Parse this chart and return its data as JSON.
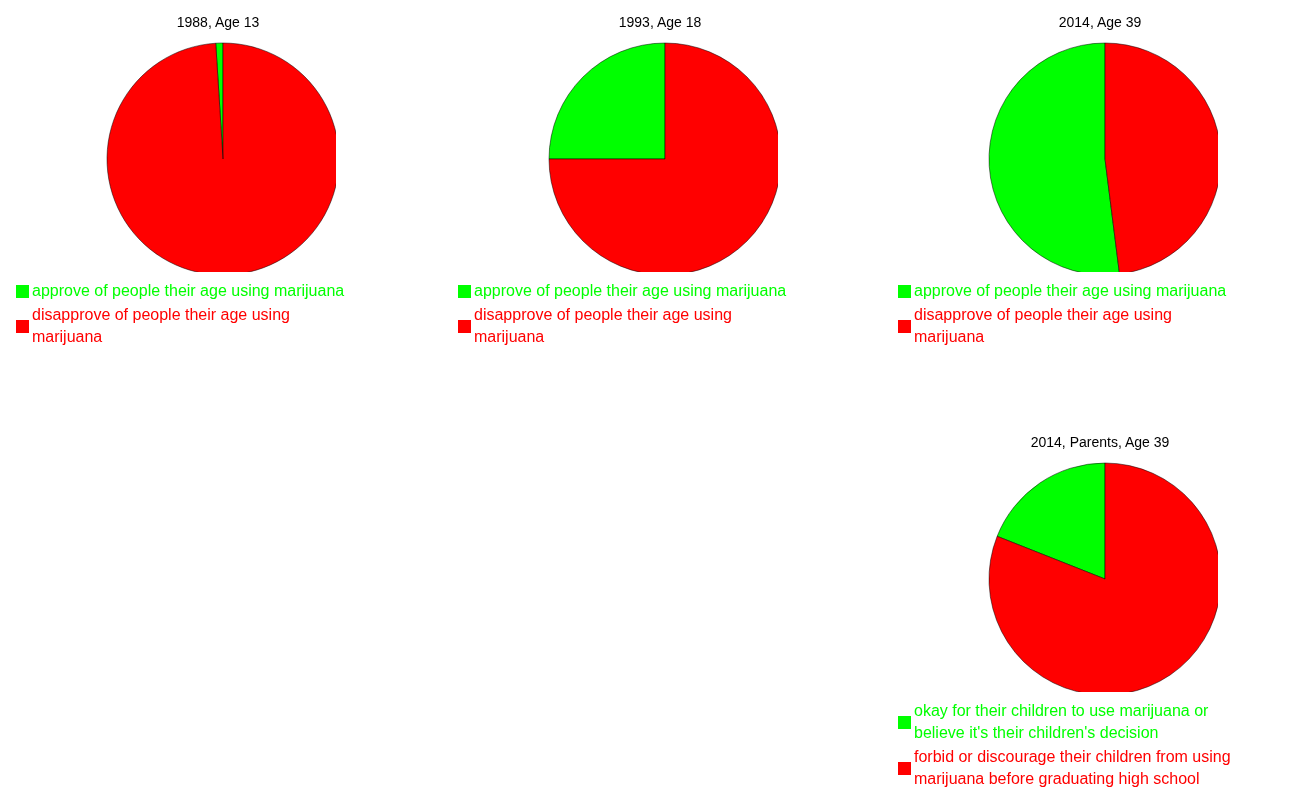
{
  "chart_data": [
    {
      "type": "pie",
      "title": "1988, Age 13",
      "categories": [
        "approve of people their age using marijuana",
        "disapprove of people their age using marijuana"
      ],
      "values": [
        1,
        99
      ],
      "colors": [
        "#00ff00",
        "#ff0000"
      ],
      "legend": "bottom"
    },
    {
      "type": "pie",
      "title": "1993, Age 18",
      "categories": [
        "approve of people their age using marijuana",
        "disapprove of people their age using marijuana"
      ],
      "values": [
        25,
        75
      ],
      "colors": [
        "#00ff00",
        "#ff0000"
      ],
      "legend": "bottom"
    },
    {
      "type": "pie",
      "title": "2014, Age 39",
      "categories": [
        "approve of people their age using marijuana",
        "disapprove of people their age using marijuana"
      ],
      "values": [
        52,
        48
      ],
      "colors": [
        "#00ff00",
        "#ff0000"
      ],
      "legend": "bottom"
    },
    {
      "type": "pie",
      "title": "2014, Parents, Age 39",
      "categories": [
        "okay for their children to use marijuana or believe it's their children's decision",
        "forbid or discourage their children from using marijuana before graduating high school"
      ],
      "values": [
        19,
        81
      ],
      "colors": [
        "#00ff00",
        "#ff0000"
      ],
      "legend": "bottom"
    }
  ]
}
